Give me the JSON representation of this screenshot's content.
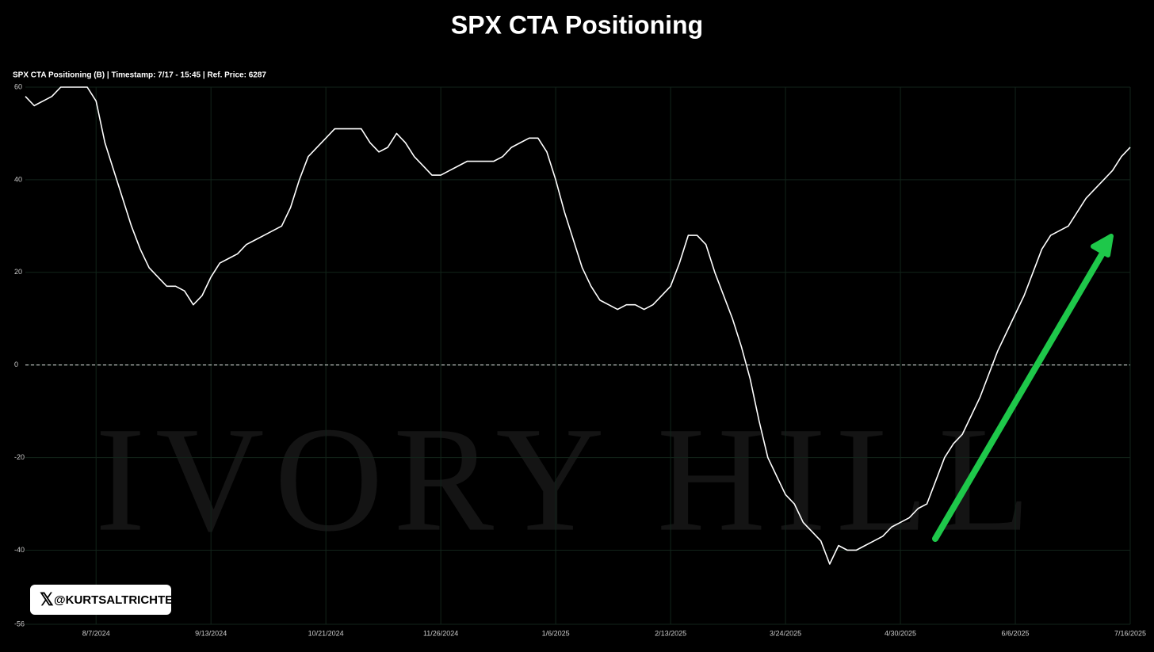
{
  "chart_data": {
    "type": "line",
    "title": "SPX CTA Positioning",
    "subtitle": "SPX CTA Positioning (B) | Timestamp: 7/17 - 15:45  | Ref. Price: 6287",
    "watermark": "IVORY HILL",
    "credit": "@KURTSALTRICHTER",
    "categories": [
      null,
      null,
      null,
      null,
      null,
      null,
      null,
      null,
      "8/7/2024",
      null,
      null,
      null,
      null,
      null,
      null,
      null,
      null,
      null,
      null,
      null,
      null,
      "9/13/2024",
      null,
      null,
      null,
      null,
      null,
      null,
      null,
      null,
      null,
      null,
      null,
      null,
      "10/21/2024",
      null,
      null,
      null,
      null,
      null,
      null,
      null,
      null,
      null,
      null,
      null,
      null,
      "11/26/2024",
      null,
      null,
      null,
      null,
      null,
      null,
      null,
      null,
      null,
      null,
      null,
      null,
      "1/6/2025",
      null,
      null,
      null,
      null,
      null,
      null,
      null,
      null,
      null,
      null,
      null,
      null,
      "2/13/2025",
      null,
      null,
      null,
      null,
      null,
      null,
      null,
      null,
      null,
      null,
      null,
      null,
      "3/24/2025",
      null,
      null,
      null,
      null,
      null,
      null,
      null,
      null,
      null,
      null,
      null,
      null,
      "4/30/2025",
      null,
      null,
      null,
      null,
      null,
      null,
      null,
      null,
      null,
      null,
      null,
      null,
      "6/6/2025",
      null,
      null,
      null,
      null,
      null,
      null,
      null,
      null,
      null,
      null,
      null,
      null,
      "7/16/2025"
    ],
    "series": [
      {
        "color": "#ffffff",
        "values": [
          58,
          56,
          57,
          58,
          60,
          60,
          60,
          60,
          57,
          48,
          42,
          36,
          30,
          25,
          21,
          19,
          17,
          17,
          16,
          13,
          15,
          19,
          22,
          23,
          24,
          26,
          27,
          28,
          29,
          30,
          34,
          40,
          45,
          47,
          49,
          51,
          51,
          51,
          51,
          48,
          46,
          47,
          50,
          48,
          45,
          43,
          41,
          41,
          42,
          43,
          44,
          44,
          44,
          44,
          45,
          47,
          48,
          49,
          49,
          46,
          40,
          33,
          27,
          21,
          17,
          14,
          13,
          12,
          13,
          13,
          12,
          13,
          15,
          17,
          22,
          28,
          28,
          26,
          20,
          15,
          10,
          4,
          -3,
          -12,
          -20,
          -24,
          -28,
          -30,
          -34,
          -36,
          -38,
          -43,
          -39,
          -40,
          -40,
          -39,
          -38,
          -37,
          -35,
          -34,
          -33,
          -31,
          -30,
          -25,
          -20,
          -17,
          -15,
          -11,
          -7,
          -2,
          3,
          7,
          11,
          15,
          20,
          25,
          28,
          29,
          30,
          33,
          36,
          38,
          40,
          42,
          45,
          47
        ]
      }
    ],
    "ylim": [
      -56,
      60
    ],
    "yticks": [
      -56,
      -40,
      -20,
      0,
      20,
      40,
      60
    ],
    "grid": true,
    "zero_line": true
  }
}
